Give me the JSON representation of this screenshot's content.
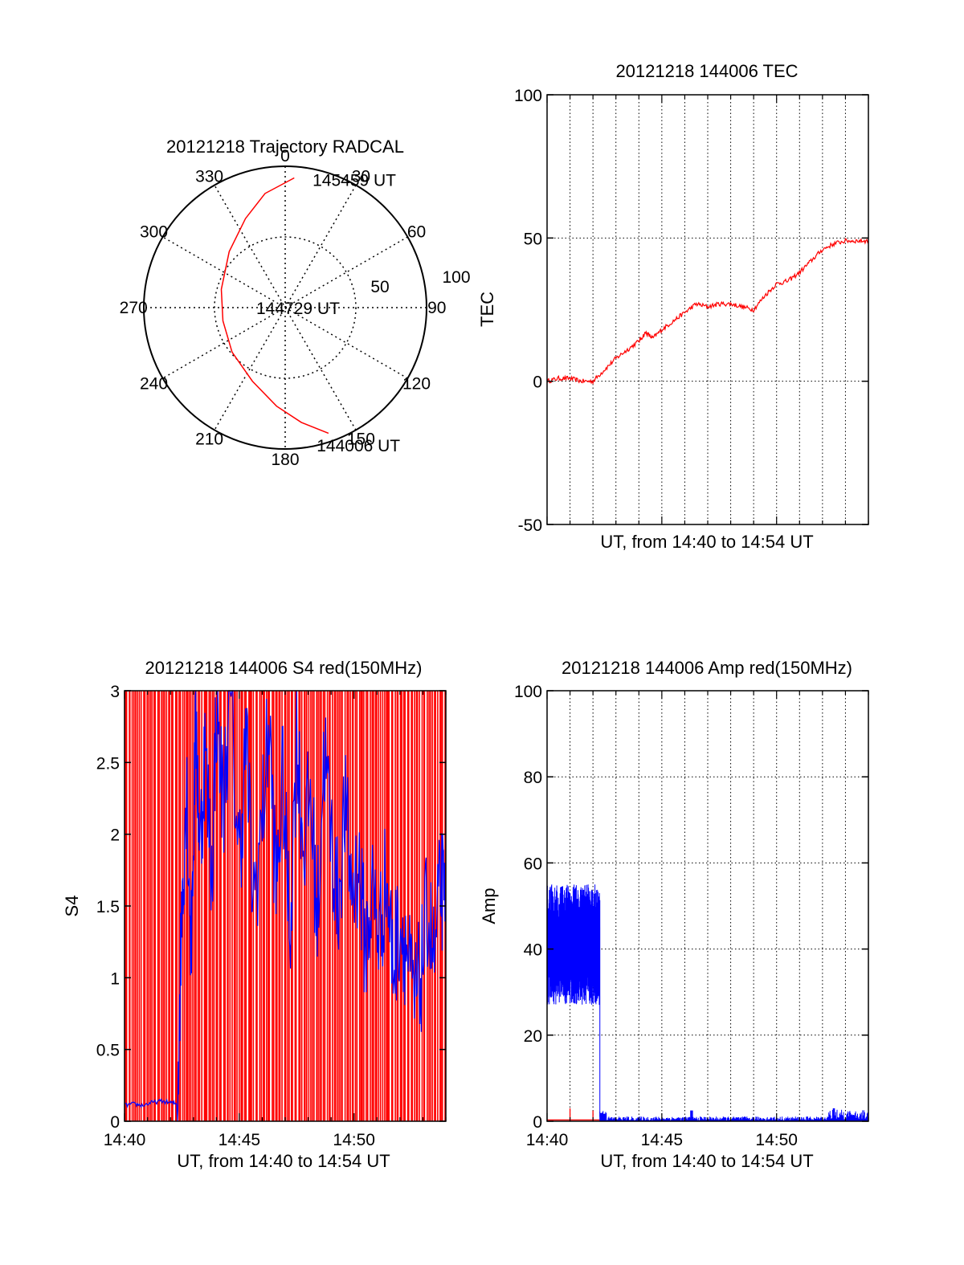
{
  "chart_data": [
    {
      "type": "polar",
      "title": "20121218 Trajectory RADCAL",
      "azimuth_labels": [
        "0",
        "30",
        "60",
        "90",
        "120",
        "150",
        "180",
        "210",
        "240",
        "270",
        "300",
        "330"
      ],
      "radius_labels": [
        "50",
        "100"
      ],
      "radius_max": 100,
      "trajectory_color": "#ff0000",
      "trajectory": [
        {
          "az": 161,
          "zd": 94
        },
        {
          "az": 172,
          "zd": 82
        },
        {
          "az": 185,
          "zd": 70
        },
        {
          "az": 204,
          "zd": 57
        },
        {
          "az": 230,
          "zd": 49
        },
        {
          "az": 258,
          "zd": 45
        },
        {
          "az": 286,
          "zd": 47
        },
        {
          "az": 315,
          "zd": 56
        },
        {
          "az": 336,
          "zd": 69
        },
        {
          "az": 350,
          "zd": 82
        },
        {
          "az": 4,
          "zd": 92
        }
      ],
      "annotations": [
        {
          "text": "145459 UT",
          "az": 10,
          "zd": 92
        },
        {
          "text": "144729 UT",
          "az": 0,
          "zd": 0
        },
        {
          "text": "144006 UT",
          "az": 169,
          "zd": 99
        }
      ]
    },
    {
      "type": "line",
      "title": "20121218 144006 TEC",
      "xlabel": "UT, from 14:40 to 14:54 UT",
      "ylabel": "TEC",
      "xlim": [
        0,
        14
      ],
      "ylim": [
        -50,
        100
      ],
      "yticks": [
        -50,
        0,
        50,
        100
      ],
      "xticks": [],
      "grid": true,
      "series": [
        {
          "color": "#ff0000",
          "x": [
            0,
            0.5,
            1,
            1.5,
            2,
            2.5,
            3,
            3.5,
            4,
            4.3,
            4.6,
            5,
            5.5,
            6,
            6.5,
            7,
            7.5,
            8,
            8.5,
            9,
            9.5,
            10,
            10.5,
            11,
            11.5,
            12,
            12.5,
            13,
            13.5,
            14
          ],
          "y": [
            0,
            1,
            1,
            0,
            0,
            4,
            8,
            11,
            14,
            17,
            15,
            18,
            21,
            24,
            27,
            26,
            27,
            27,
            26,
            25,
            30,
            34,
            35,
            38,
            42,
            46,
            48,
            49,
            49,
            49
          ]
        }
      ]
    },
    {
      "type": "line",
      "title": "20121218 144006 S4 red(150MHz)",
      "xlabel": "UT, from 14:40 to 14:54 UT",
      "ylabel": "S4",
      "xlim": [
        0,
        14
      ],
      "ylim": [
        0,
        3
      ],
      "xticks": [
        {
          "x": 0,
          "label": "14:40"
        },
        {
          "x": 5,
          "label": "14:45"
        },
        {
          "x": 10,
          "label": "14:50"
        }
      ],
      "yticks": [
        0,
        0.5,
        1,
        1.5,
        2,
        2.5,
        3
      ],
      "grid": false,
      "series": [
        {
          "color": "#ff0000",
          "style": "spikes",
          "count": 180,
          "x_range": [
            0,
            14
          ],
          "y_range": [
            0,
            3
          ]
        },
        {
          "color": "#0000ff",
          "x": [
            0,
            0.4,
            0.8,
            1.2,
            1.6,
            2.0,
            2.3,
            2.5,
            2.7,
            2.9,
            3.1,
            3.3,
            3.5,
            3.8,
            4.0,
            4.3,
            4.6,
            5.0,
            5.3,
            5.6,
            6.0,
            6.3,
            6.6,
            6.9,
            7.2,
            7.5,
            7.8,
            8.1,
            8.4,
            8.7,
            9.0,
            9.3,
            9.6,
            9.9,
            10.2,
            10.5,
            10.8,
            11.1,
            11.4,
            11.7,
            12.0,
            12.3,
            12.6,
            12.9,
            13.2,
            13.5,
            13.8,
            14.0
          ],
          "y": [
            0.11,
            0.12,
            0.11,
            0.13,
            0.14,
            0.13,
            0.12,
            1.5,
            2.4,
            1.2,
            2.8,
            1.9,
            2.6,
            1.7,
            2.9,
            2.2,
            3.0,
            1.8,
            2.7,
            1.5,
            2.1,
            2.8,
            1.6,
            2.4,
            1.3,
            2.7,
            1.9,
            2.3,
            1.4,
            2.6,
            2.0,
            1.5,
            2.2,
            1.6,
            1.8,
            1.2,
            1.6,
            1.3,
            1.7,
            1.1,
            1.4,
            1.2,
            0.8,
            1.0,
            1.5,
            1.1,
            1.7,
            1.3
          ]
        }
      ]
    },
    {
      "type": "line",
      "title": "20121218 144006 Amp red(150MHz)",
      "xlabel": "UT, from 14:40 to 14:54 UT",
      "ylabel": "Amp",
      "xlim": [
        0,
        14
      ],
      "ylim": [
        0,
        100
      ],
      "xticks": [
        {
          "x": 0,
          "label": "14:40"
        },
        {
          "x": 5,
          "label": "14:45"
        },
        {
          "x": 10,
          "label": "14:50"
        }
      ],
      "yticks": [
        0,
        20,
        40,
        60,
        80,
        100
      ],
      "grid": true,
      "series": [
        {
          "color": "#ff0000",
          "style": "flat",
          "x": [
            0,
            2.3
          ],
          "y": [
            0.3,
            0.3
          ],
          "spikes": [
            {
              "x": 1.0,
              "y": 3
            },
            {
              "x": 2.0,
              "y": 2.5
            }
          ]
        },
        {
          "color": "#0000ff",
          "style": "noise_band",
          "x_range": [
            0,
            2.3
          ],
          "y_range": [
            27,
            55
          ],
          "drop": {
            "x": 2.3,
            "to": 1
          }
        },
        {
          "color": "#0000ff",
          "style": "low_noise",
          "x_range": [
            2.3,
            14
          ],
          "y_range": [
            0.2,
            2.5
          ],
          "bumps": [
            {
              "x": 6.3,
              "y": 2.5
            },
            {
              "x": 12.5,
              "y": 3
            }
          ]
        }
      ]
    }
  ]
}
